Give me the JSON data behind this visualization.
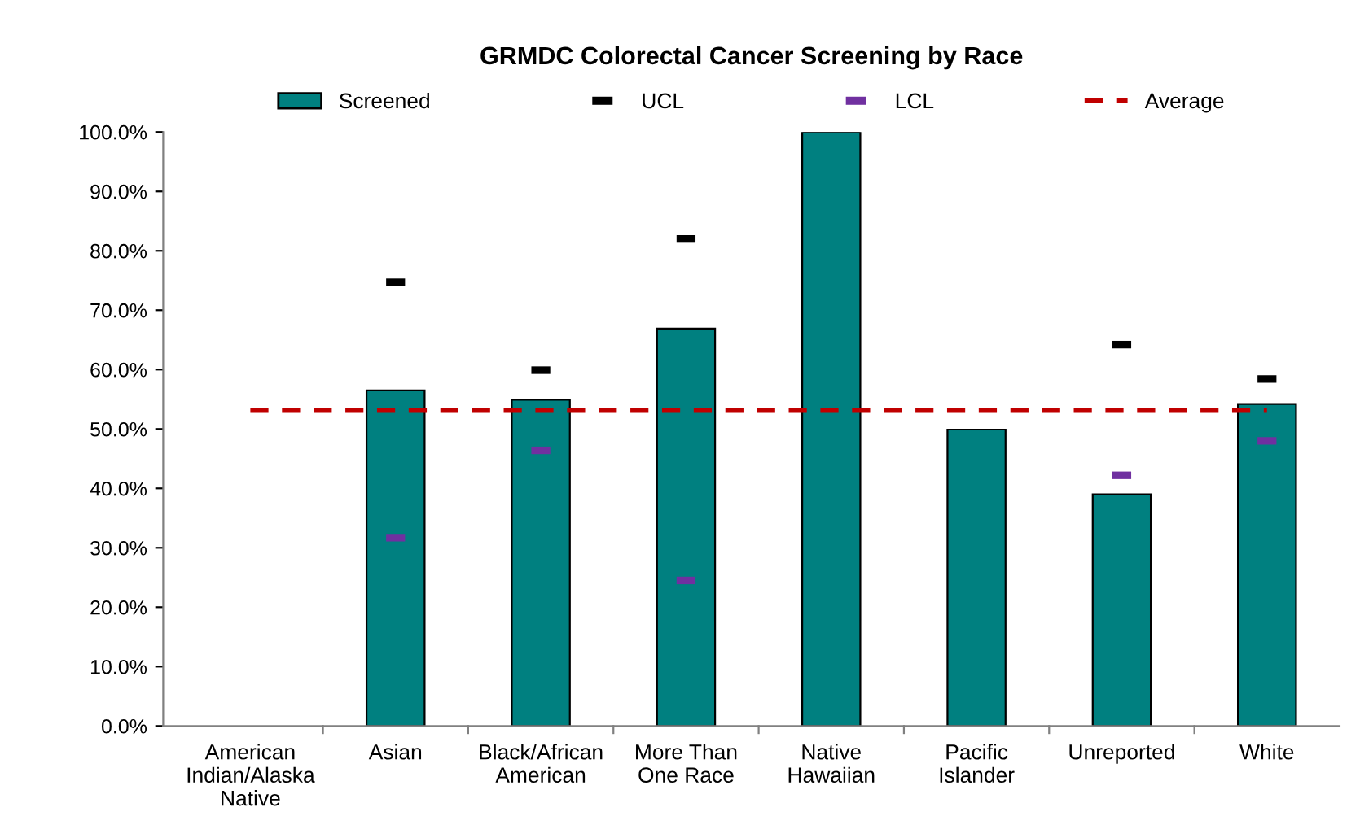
{
  "chart_data": {
    "type": "bar",
    "title": "GRMDC Colorectal Cancer Screening by Race",
    "categories": [
      "American Indian/Alaska Native",
      "Asian",
      "Black/African American",
      "More Than One Race",
      "Native Hawaiian",
      "Pacific Islander",
      "Unreported",
      "White"
    ],
    "series": [
      {
        "name": "Screened",
        "type": "bar",
        "color": "#008080",
        "values": [
          null,
          56.5,
          54.9,
          66.9,
          100.0,
          49.9,
          39.0,
          54.2
        ]
      },
      {
        "name": "UCL",
        "type": "scatter",
        "color": "#000000",
        "values": [
          null,
          74.7,
          59.9,
          82.0,
          null,
          null,
          64.2,
          58.4
        ]
      },
      {
        "name": "LCL",
        "type": "scatter",
        "color": "#7030a0",
        "values": [
          null,
          31.7,
          46.4,
          24.5,
          null,
          null,
          42.2,
          48.0
        ]
      }
    ],
    "ref_lines": [
      {
        "axis": "y",
        "value": 53.1,
        "label": "Average",
        "color": "#c00000",
        "line_style": "dashed"
      }
    ],
    "ylim": [
      0,
      100
    ],
    "yticks": [
      {
        "value": 0,
        "label": "0.0%"
      },
      {
        "value": 10,
        "label": "10.0%"
      },
      {
        "value": 20,
        "label": "20.0%"
      },
      {
        "value": 30,
        "label": "30.0%"
      },
      {
        "value": 40,
        "label": "40.0%"
      },
      {
        "value": 50,
        "label": "50.0%"
      },
      {
        "value": 60,
        "label": "60.0%"
      },
      {
        "value": 70,
        "label": "70.0%"
      },
      {
        "value": 80,
        "label": "80.0%"
      },
      {
        "value": 90,
        "label": "90.0%"
      },
      {
        "value": 100,
        "label": "100.0%"
      }
    ],
    "grid": false,
    "legend": "top"
  }
}
